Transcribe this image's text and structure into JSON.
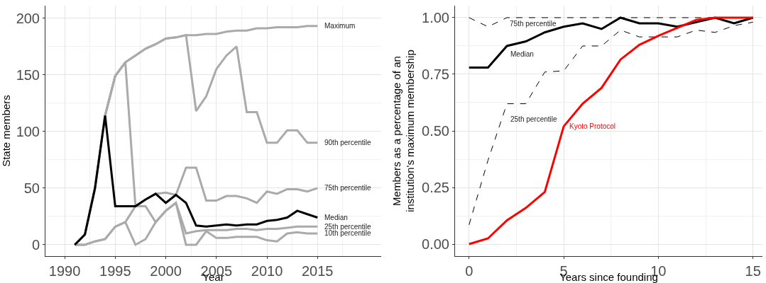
{
  "chart_data": [
    {
      "type": "line",
      "xlabel": "Year",
      "ylabel": "State members",
      "x": [
        1991,
        1992,
        1993,
        1994,
        1995,
        1996,
        1997,
        1998,
        1999,
        2000,
        2001,
        2002,
        2003,
        2004,
        2005,
        2006,
        2007,
        2008,
        2009,
        2010,
        2011,
        2012,
        2013,
        2014,
        2015
      ],
      "xlim": [
        1988.1,
        2021.3
      ],
      "ylim": [
        -10,
        211
      ],
      "xticks": [
        1990,
        1995,
        2000,
        2005,
        2010,
        2015
      ],
      "yticks": [
        0,
        50,
        100,
        150,
        200
      ],
      "grid": true,
      "legend": false,
      "series": [
        {
          "name": "Maximum",
          "color": "#aaaaaa",
          "values": [
            0,
            9,
            50,
            114,
            149,
            161,
            167,
            173,
            177,
            182,
            183,
            185,
            185,
            186,
            186,
            188,
            189,
            189,
            191,
            191,
            192,
            192,
            192,
            193,
            193
          ]
        },
        {
          "name": "90th percentile",
          "color": "#aaaaaa",
          "values": [
            0,
            9,
            50,
            114,
            149,
            161,
            167,
            173,
            177,
            182,
            183,
            185,
            118,
            131,
            155,
            167,
            175,
            117,
            117,
            90,
            90,
            101,
            101,
            90,
            90
          ]
        },
        {
          "name": "75th percentile",
          "color": "#aaaaaa",
          "values": [
            0,
            9,
            50,
            114,
            149,
            161,
            34,
            40,
            45,
            46,
            44,
            68,
            68,
            39,
            39,
            43,
            43,
            41,
            37,
            47,
            45,
            49,
            49,
            47,
            50
          ]
        },
        {
          "name": "25th percentile",
          "color": "#aaaaaa",
          "values": [
            0,
            0,
            3,
            5,
            16,
            20,
            34,
            34,
            20,
            30,
            37,
            10,
            12,
            13,
            13,
            13,
            14,
            14,
            13,
            14,
            14,
            15,
            16,
            16,
            16
          ]
        },
        {
          "name": "10th percentile",
          "color": "#aaaaaa",
          "values": [
            0,
            0,
            3,
            5,
            16,
            20,
            0,
            5,
            20,
            30,
            37,
            0,
            0,
            12,
            6,
            6,
            7,
            7,
            7,
            4,
            3,
            10,
            11,
            10,
            10
          ]
        },
        {
          "name": "Median",
          "color": "#000000",
          "values": [
            0,
            9,
            50,
            114,
            34,
            34,
            34,
            40,
            45,
            37,
            44,
            37,
            17,
            16,
            17,
            18,
            17,
            18,
            18,
            21,
            22,
            24,
            30,
            27,
            24
          ]
        }
      ]
    },
    {
      "type": "line",
      "xlabel": "Years since founding",
      "ylabel": "Members as a percentage of an\ninstitution's maximum membership",
      "x": [
        0,
        1,
        2,
        3,
        4,
        5,
        6,
        7,
        8,
        9,
        10,
        11,
        12,
        13,
        14,
        15
      ],
      "xlim": [
        -0.74,
        15.5
      ],
      "ylim": [
        -0.053,
        1.053
      ],
      "xticks": [
        0,
        5,
        10,
        15
      ],
      "yticks": [
        {
          "value": 0,
          "label": "0.00"
        },
        {
          "value": 0.25,
          "label": "0.25"
        },
        {
          "value": 0.5,
          "label": "0.50"
        },
        {
          "value": 0.75,
          "label": "0.75"
        },
        {
          "value": 1,
          "label": "1.00"
        }
      ],
      "grid": true,
      "legend": false,
      "series": [
        {
          "name": "75th percentile",
          "color": "#000000",
          "line_style": "dashed",
          "values": [
            1.0,
            0.96,
            1.0,
            1.0,
            1.0,
            1.0,
            1.0,
            1.0,
            1.0,
            1.0,
            1.0,
            1.0,
            1.0,
            1.0,
            1.0,
            1.0
          ]
        },
        {
          "name": "25th percentile",
          "color": "#000000",
          "line_style": "dashed",
          "values": [
            0.085,
            0.37,
            0.62,
            0.62,
            0.76,
            0.765,
            0.875,
            0.875,
            0.945,
            0.915,
            0.915,
            0.915,
            0.945,
            0.935,
            0.965,
            0.98
          ]
        },
        {
          "name": "Median",
          "color": "#000000",
          "values": [
            0.78,
            0.78,
            0.875,
            0.895,
            0.935,
            0.96,
            0.975,
            0.95,
            1.0,
            0.975,
            0.975,
            0.96,
            0.98,
            1.0,
            0.975,
            1.0
          ]
        },
        {
          "name": "Kyoto Protocol",
          "color": "#ff0000",
          "values": [
            0,
            0.025,
            0.105,
            0.16,
            0.23,
            0.52,
            0.62,
            0.69,
            0.815,
            0.88,
            0.92,
            0.955,
            0.99,
            1.0,
            1.0,
            1.0
          ]
        }
      ]
    }
  ]
}
